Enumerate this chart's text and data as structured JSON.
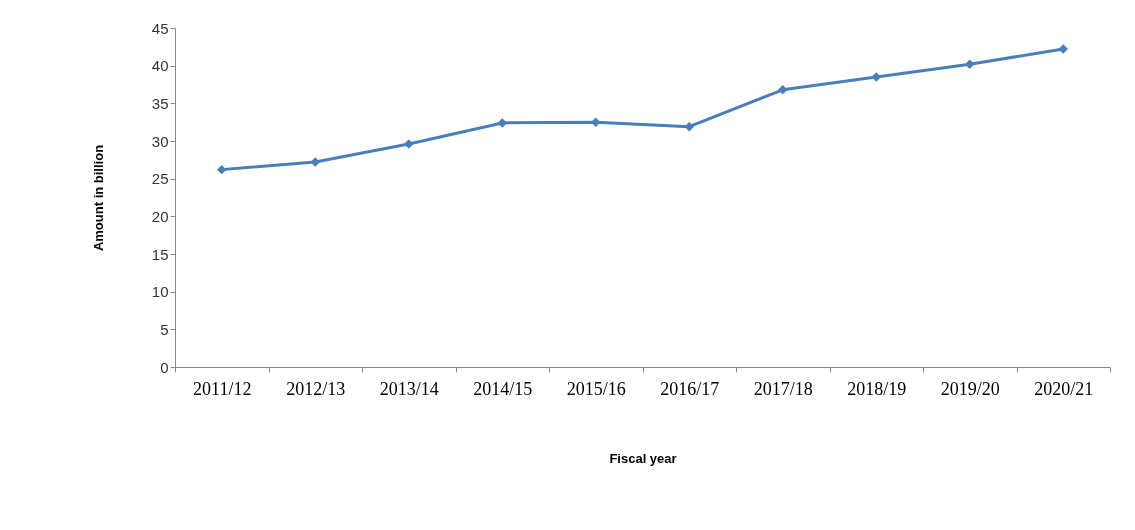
{
  "chart_data": {
    "type": "line",
    "xlabel": "Fiscal year",
    "ylabel": "Amount in billion",
    "categories": [
      "2011/12",
      "2012/13",
      "2013/14",
      "2014/15",
      "2015/16",
      "2016/17",
      "2017/18",
      "2018/19",
      "2019/20",
      "2020/21"
    ],
    "series": [
      {
        "color": "#4a7ebb",
        "values": [
          26.2,
          27.2,
          29.6,
          32.4,
          32.5,
          31.9,
          36.8,
          38.5,
          40.2,
          42.2
        ]
      }
    ],
    "ylim": [
      0,
      45
    ],
    "yticks": [
      0,
      5,
      10,
      15,
      20,
      25,
      30,
      35,
      40,
      45
    ],
    "grid": false,
    "legend": false,
    "marker": "diamond",
    "line_style": "solid"
  }
}
